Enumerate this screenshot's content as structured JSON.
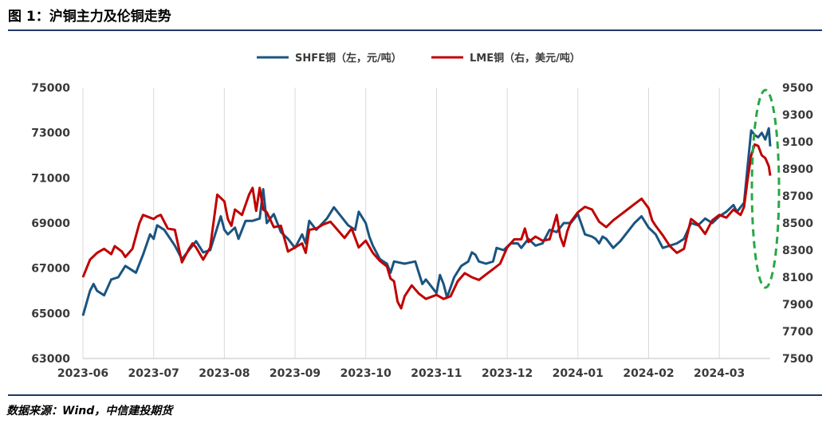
{
  "header": {
    "title": "图 1：沪铜主力及伦铜走势"
  },
  "footer": {
    "source": "数据来源：Wind，中信建投期货"
  },
  "colors": {
    "shfe": "#1a5480",
    "lme": "#c00000",
    "grid": "#d9d9d9",
    "highlight": "#28a745",
    "rule": "#1f3864"
  },
  "chart_data": {
    "type": "line",
    "title": "",
    "legend_position": "top-center",
    "y_left": {
      "label": "",
      "ylim": [
        63000,
        75000
      ],
      "ticks": [
        "63000",
        "65000",
        "67000",
        "69000",
        "71000",
        "73000",
        "75000"
      ]
    },
    "y_right": {
      "label": "",
      "ylim": [
        7500,
        9500
      ],
      "ticks": [
        "7500",
        "7700",
        "7900",
        "8100",
        "8300",
        "8500",
        "8700",
        "8900",
        "9100",
        "9300",
        "9500"
      ]
    },
    "categories": [
      "2023-06",
      "2023-07",
      "2023-08",
      "2023-09",
      "2023-10",
      "2023-11",
      "2023-12",
      "2024-01",
      "2024-02",
      "2024-03"
    ],
    "series": [
      {
        "name": "SHFE铜（左，元/吨）",
        "axis": "left",
        "points": [
          [
            0.0,
            64900
          ],
          [
            0.1,
            66000
          ],
          [
            0.15,
            66300
          ],
          [
            0.2,
            66000
          ],
          [
            0.3,
            65800
          ],
          [
            0.4,
            66500
          ],
          [
            0.5,
            66600
          ],
          [
            0.6,
            67100
          ],
          [
            0.75,
            66800
          ],
          [
            0.85,
            67600
          ],
          [
            0.95,
            68500
          ],
          [
            1.0,
            68300
          ],
          [
            1.05,
            68900
          ],
          [
            1.15,
            68700
          ],
          [
            1.3,
            68000
          ],
          [
            1.4,
            67400
          ],
          [
            1.5,
            67800
          ],
          [
            1.55,
            68000
          ],
          [
            1.6,
            68200
          ],
          [
            1.7,
            67700
          ],
          [
            1.8,
            67800
          ],
          [
            1.95,
            69300
          ],
          [
            2.0,
            68700
          ],
          [
            2.05,
            68500
          ],
          [
            2.15,
            68800
          ],
          [
            2.2,
            68300
          ],
          [
            2.3,
            69100
          ],
          [
            2.4,
            69100
          ],
          [
            2.5,
            69200
          ],
          [
            2.55,
            70500
          ],
          [
            2.6,
            69000
          ],
          [
            2.7,
            69400
          ],
          [
            2.8,
            68600
          ],
          [
            2.9,
            68300
          ],
          [
            3.0,
            67900
          ],
          [
            3.1,
            68500
          ],
          [
            3.15,
            68100
          ],
          [
            3.2,
            69100
          ],
          [
            3.3,
            68700
          ],
          [
            3.45,
            69200
          ],
          [
            3.55,
            69700
          ],
          [
            3.65,
            69300
          ],
          [
            3.75,
            68900
          ],
          [
            3.85,
            68700
          ],
          [
            3.9,
            69500
          ],
          [
            4.0,
            69000
          ],
          [
            4.05,
            68400
          ],
          [
            4.1,
            68000
          ],
          [
            4.2,
            67400
          ],
          [
            4.25,
            67300
          ],
          [
            4.3,
            67200
          ],
          [
            4.35,
            66800
          ],
          [
            4.4,
            67300
          ],
          [
            4.55,
            67200
          ],
          [
            4.7,
            67300
          ],
          [
            4.8,
            66300
          ],
          [
            4.85,
            66500
          ],
          [
            4.95,
            66100
          ],
          [
            5.0,
            65900
          ],
          [
            5.05,
            66700
          ],
          [
            5.1,
            66300
          ],
          [
            5.15,
            65700
          ],
          [
            5.25,
            66600
          ],
          [
            5.35,
            67100
          ],
          [
            5.45,
            67300
          ],
          [
            5.5,
            67700
          ],
          [
            5.55,
            67600
          ],
          [
            5.6,
            67300
          ],
          [
            5.7,
            67200
          ],
          [
            5.8,
            67300
          ],
          [
            5.85,
            67900
          ],
          [
            5.95,
            67800
          ],
          [
            6.05,
            68100
          ],
          [
            6.15,
            68100
          ],
          [
            6.2,
            67900
          ],
          [
            6.3,
            68300
          ],
          [
            6.4,
            68000
          ],
          [
            6.5,
            68100
          ],
          [
            6.6,
            68700
          ],
          [
            6.7,
            68600
          ],
          [
            6.8,
            69000
          ],
          [
            6.9,
            69000
          ],
          [
            7.0,
            69400
          ],
          [
            7.1,
            68500
          ],
          [
            7.2,
            68400
          ],
          [
            7.25,
            68300
          ],
          [
            7.3,
            68100
          ],
          [
            7.35,
            68400
          ],
          [
            7.4,
            68300
          ],
          [
            7.5,
            67900
          ],
          [
            7.6,
            68200
          ],
          [
            7.7,
            68600
          ],
          [
            7.8,
            69000
          ],
          [
            7.9,
            69300
          ],
          [
            8.0,
            68800
          ],
          [
            8.1,
            68500
          ],
          [
            8.2,
            67900
          ],
          [
            8.4,
            68100
          ],
          [
            8.5,
            68300
          ],
          [
            8.6,
            69000
          ],
          [
            8.7,
            68900
          ],
          [
            8.8,
            69200
          ],
          [
            8.9,
            69000
          ],
          [
            9.0,
            69300
          ],
          [
            9.1,
            69500
          ],
          [
            9.2,
            69800
          ],
          [
            9.25,
            69500
          ],
          [
            9.35,
            69900
          ],
          [
            9.4,
            71500
          ],
          [
            9.45,
            73100
          ],
          [
            9.5,
            72900
          ],
          [
            9.55,
            72800
          ],
          [
            9.6,
            73000
          ],
          [
            9.65,
            72700
          ],
          [
            9.7,
            73200
          ],
          [
            9.72,
            72400
          ]
        ]
      },
      {
        "name": "LME铜（右，美元/吨）",
        "axis": "right",
        "points": [
          [
            0.0,
            8100
          ],
          [
            0.1,
            8230
          ],
          [
            0.2,
            8280
          ],
          [
            0.3,
            8310
          ],
          [
            0.4,
            8270
          ],
          [
            0.45,
            8330
          ],
          [
            0.55,
            8290
          ],
          [
            0.6,
            8250
          ],
          [
            0.7,
            8310
          ],
          [
            0.8,
            8500
          ],
          [
            0.85,
            8560
          ],
          [
            0.95,
            8540
          ],
          [
            1.0,
            8530
          ],
          [
            1.05,
            8550
          ],
          [
            1.1,
            8560
          ],
          [
            1.2,
            8460
          ],
          [
            1.3,
            8450
          ],
          [
            1.4,
            8210
          ],
          [
            1.5,
            8310
          ],
          [
            1.55,
            8350
          ],
          [
            1.6,
            8320
          ],
          [
            1.7,
            8230
          ],
          [
            1.8,
            8320
          ],
          [
            1.9,
            8710
          ],
          [
            2.0,
            8660
          ],
          [
            2.05,
            8530
          ],
          [
            2.1,
            8480
          ],
          [
            2.15,
            8600
          ],
          [
            2.25,
            8560
          ],
          [
            2.35,
            8710
          ],
          [
            2.4,
            8760
          ],
          [
            2.45,
            8590
          ],
          [
            2.5,
            8760
          ],
          [
            2.55,
            8600
          ],
          [
            2.6,
            8580
          ],
          [
            2.7,
            8470
          ],
          [
            2.8,
            8480
          ],
          [
            2.9,
            8290
          ],
          [
            3.0,
            8320
          ],
          [
            3.1,
            8350
          ],
          [
            3.15,
            8280
          ],
          [
            3.2,
            8450
          ],
          [
            3.3,
            8460
          ],
          [
            3.4,
            8490
          ],
          [
            3.5,
            8510
          ],
          [
            3.6,
            8450
          ],
          [
            3.7,
            8390
          ],
          [
            3.8,
            8460
          ],
          [
            3.9,
            8320
          ],
          [
            4.0,
            8370
          ],
          [
            4.1,
            8280
          ],
          [
            4.2,
            8220
          ],
          [
            4.3,
            8180
          ],
          [
            4.35,
            8090
          ],
          [
            4.4,
            8070
          ],
          [
            4.45,
            7920
          ],
          [
            4.5,
            7870
          ],
          [
            4.55,
            7960
          ],
          [
            4.65,
            8040
          ],
          [
            4.75,
            7980
          ],
          [
            4.85,
            7940
          ],
          [
            4.95,
            7960
          ],
          [
            5.0,
            7970
          ],
          [
            5.1,
            7940
          ],
          [
            5.2,
            7960
          ],
          [
            5.3,
            8070
          ],
          [
            5.4,
            8130
          ],
          [
            5.5,
            8100
          ],
          [
            5.6,
            8080
          ],
          [
            5.7,
            8120
          ],
          [
            5.8,
            8160
          ],
          [
            5.9,
            8200
          ],
          [
            6.0,
            8320
          ],
          [
            6.1,
            8380
          ],
          [
            6.2,
            8380
          ],
          [
            6.25,
            8460
          ],
          [
            6.3,
            8360
          ],
          [
            6.4,
            8400
          ],
          [
            6.5,
            8370
          ],
          [
            6.6,
            8380
          ],
          [
            6.7,
            8560
          ],
          [
            6.75,
            8400
          ],
          [
            6.8,
            8330
          ],
          [
            6.85,
            8440
          ],
          [
            6.9,
            8510
          ],
          [
            7.0,
            8580
          ],
          [
            7.1,
            8620
          ],
          [
            7.2,
            8600
          ],
          [
            7.3,
            8510
          ],
          [
            7.4,
            8470
          ],
          [
            7.5,
            8520
          ],
          [
            7.6,
            8560
          ],
          [
            7.7,
            8600
          ],
          [
            7.8,
            8640
          ],
          [
            7.9,
            8680
          ],
          [
            8.0,
            8610
          ],
          [
            8.05,
            8520
          ],
          [
            8.1,
            8480
          ],
          [
            8.2,
            8410
          ],
          [
            8.3,
            8330
          ],
          [
            8.4,
            8280
          ],
          [
            8.5,
            8310
          ],
          [
            8.6,
            8530
          ],
          [
            8.7,
            8490
          ],
          [
            8.8,
            8420
          ],
          [
            8.9,
            8520
          ],
          [
            9.0,
            8560
          ],
          [
            9.1,
            8540
          ],
          [
            9.2,
            8600
          ],
          [
            9.3,
            8560
          ],
          [
            9.35,
            8620
          ],
          [
            9.4,
            8820
          ],
          [
            9.45,
            9000
          ],
          [
            9.5,
            9080
          ],
          [
            9.55,
            9070
          ],
          [
            9.6,
            9000
          ],
          [
            9.65,
            8980
          ],
          [
            9.7,
            8920
          ],
          [
            9.72,
            8850
          ]
        ]
      }
    ]
  }
}
